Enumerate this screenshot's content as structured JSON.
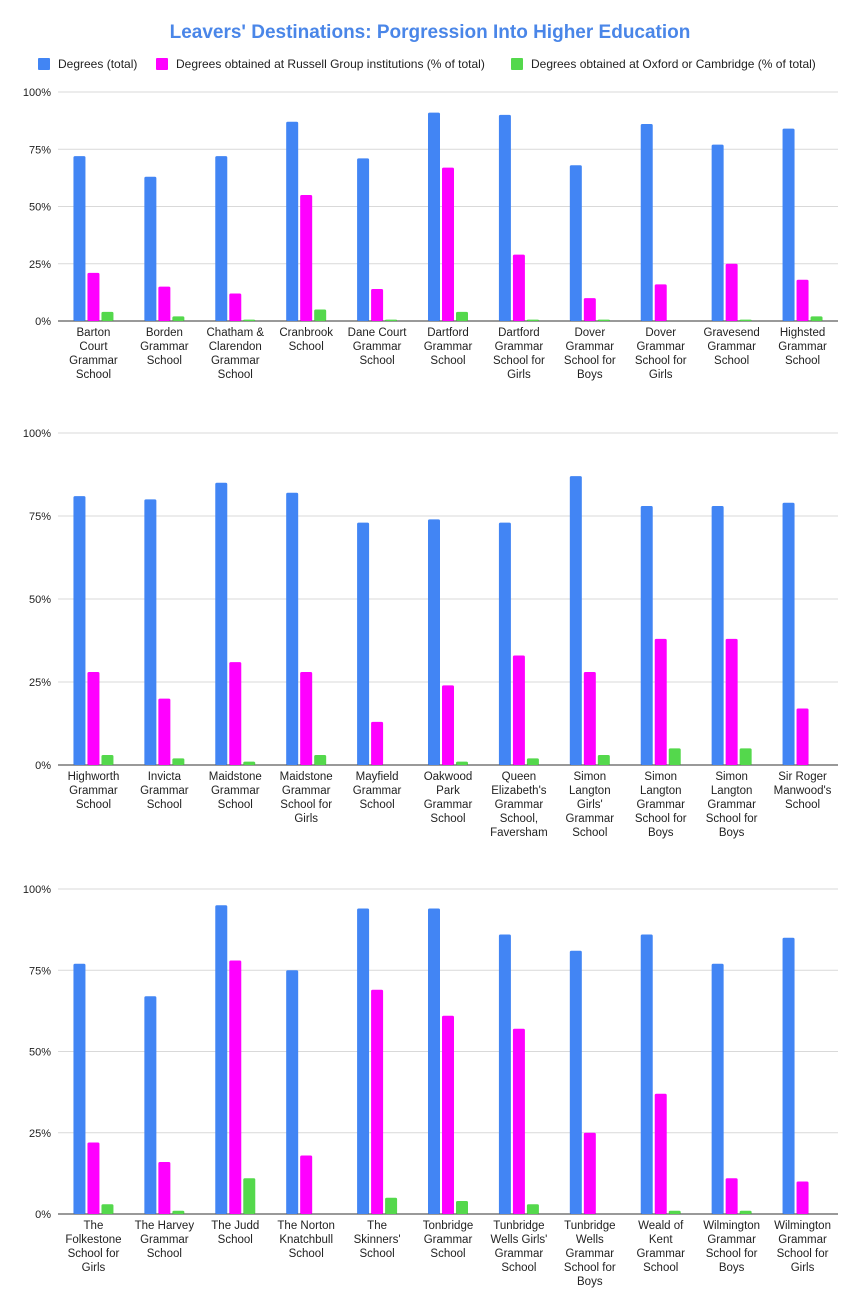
{
  "chart_data": {
    "type": "bar",
    "title": "Leavers' Destinations: Porgression Into Higher Education",
    "legend": [
      {
        "name": "Degrees (total)",
        "color": "#4285f4"
      },
      {
        "name": "Degrees obtained at Russell Group institutions (% of total)",
        "color": "#ff00ff"
      },
      {
        "name": "Degrees obtained at Oxford or Cambridge (% of total)",
        "color": "#54d84c"
      }
    ],
    "y_ticks": [
      "0%",
      "25%",
      "50%",
      "75%",
      "100%"
    ],
    "ylim": [
      0,
      100
    ],
    "panels": [
      {
        "categories": [
          [
            "Barton",
            "Court",
            "Grammar",
            "School"
          ],
          [
            "Borden",
            "Grammar",
            "School"
          ],
          [
            "Chatham &",
            "Clarendon",
            "Grammar",
            "School"
          ],
          [
            "Cranbrook",
            "School"
          ],
          [
            "Dane Court",
            "Grammar",
            "School"
          ],
          [
            "Dartford",
            "Grammar",
            "School"
          ],
          [
            "Dartford",
            "Grammar",
            "School for",
            "Girls"
          ],
          [
            "Dover",
            "Grammar",
            "School for",
            "Boys"
          ],
          [
            "Dover",
            "Grammar",
            "School for",
            "Girls"
          ],
          [
            "Gravesend",
            "Grammar",
            "School"
          ],
          [
            "Highsted",
            "Grammar",
            "School"
          ]
        ],
        "series": [
          {
            "name": "Degrees (total)",
            "values": [
              72,
              63,
              72,
              87,
              71,
              91,
              90,
              68,
              86,
              77,
              84
            ]
          },
          {
            "name": "Degrees obtained at Russell Group institutions (% of total)",
            "values": [
              21,
              15,
              12,
              55,
              14,
              67,
              29,
              10,
              16,
              25,
              18
            ]
          },
          {
            "name": "Degrees obtained at Oxford or Cambridge (% of total)",
            "values": [
              4,
              2,
              0.6,
              5,
              0.6,
              4,
              0.6,
              0.6,
              0,
              0.6,
              2
            ]
          }
        ]
      },
      {
        "categories": [
          [
            "Highworth",
            "Grammar",
            "School"
          ],
          [
            "Invicta",
            "Grammar",
            "School"
          ],
          [
            "Maidstone",
            "Grammar",
            "School"
          ],
          [
            "Maidstone",
            "Grammar",
            "School for",
            "Girls"
          ],
          [
            "Mayfield",
            "Grammar",
            "School"
          ],
          [
            "Oakwood",
            "Park",
            "Grammar",
            "School"
          ],
          [
            "Queen",
            "Elizabeth's",
            "Grammar",
            "School,",
            "Faversham"
          ],
          [
            "Simon",
            "Langton",
            "Girls'",
            "Grammar",
            "School"
          ],
          [
            "Simon",
            "Langton",
            "Grammar",
            "School for",
            "Boys"
          ],
          [
            "Simon",
            "Langton",
            "Grammar",
            "School for",
            "Boys"
          ],
          [
            "Sir Roger",
            "Manwood's",
            "School"
          ]
        ],
        "series": [
          {
            "name": "Degrees (total)",
            "values": [
              81,
              80,
              85,
              82,
              73,
              74,
              73,
              87,
              78,
              78,
              79
            ]
          },
          {
            "name": "Degrees obtained at Russell Group institutions (% of total)",
            "values": [
              28,
              20,
              31,
              28,
              13,
              24,
              33,
              28,
              38,
              38,
              17
            ]
          },
          {
            "name": "Degrees obtained at Oxford or Cambridge (% of total)",
            "values": [
              3,
              2,
              1,
              3,
              0,
              1,
              2,
              3,
              5,
              5,
              0
            ]
          }
        ]
      },
      {
        "categories": [
          [
            "The",
            "Folkestone",
            "School for",
            "Girls"
          ],
          [
            "The Harvey",
            "Grammar",
            "School"
          ],
          [
            "The Judd",
            "School"
          ],
          [
            "The Norton",
            "Knatchbull",
            "School"
          ],
          [
            "The",
            "Skinners'",
            "School"
          ],
          [
            "Tonbridge",
            "Grammar",
            "School"
          ],
          [
            "Tunbridge",
            "Wells Girls'",
            "Grammar",
            "School"
          ],
          [
            "Tunbridge",
            "Wells",
            "Grammar",
            "School for",
            "Boys"
          ],
          [
            "Weald of",
            "Kent",
            "Grammar",
            "School"
          ],
          [
            "Wilmington",
            "Grammar",
            "School for",
            "Boys"
          ],
          [
            "Wilmington",
            "Grammar",
            "School for",
            "Girls"
          ]
        ],
        "series": [
          {
            "name": "Degrees (total)",
            "values": [
              77,
              67,
              95,
              75,
              94,
              94,
              86,
              81,
              86,
              77,
              85
            ]
          },
          {
            "name": "Degrees obtained at Russell Group institutions (% of total)",
            "values": [
              22,
              16,
              78,
              18,
              69,
              61,
              57,
              25,
              37,
              11,
              10
            ]
          },
          {
            "name": "Degrees obtained at Oxford or Cambridge (% of total)",
            "values": [
              3,
              1,
              11,
              0,
              5,
              4,
              3,
              0,
              1,
              1,
              0
            ]
          }
        ]
      }
    ]
  }
}
